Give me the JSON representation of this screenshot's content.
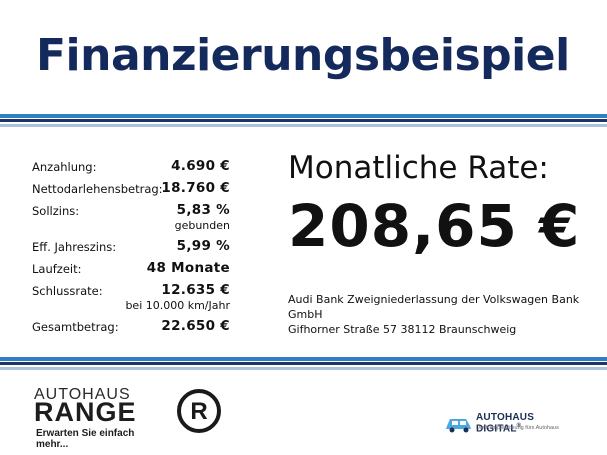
{
  "title": "Finanzierungsbeispiel",
  "details": [
    {
      "label": "Anzahlung:",
      "value": "4.690 €",
      "sub": ""
    },
    {
      "label": "Nettodarlehensbetrag:",
      "value": "18.760 €",
      "sub": ""
    },
    {
      "label": "Sollzins:",
      "value": "5,83 %",
      "sub": "gebunden"
    },
    {
      "label": "Eff. Jahreszins:",
      "value": "5,99 %",
      "sub": ""
    },
    {
      "label": "Laufzeit:",
      "value": "48 Monate",
      "sub": ""
    },
    {
      "label": "Schlussrate:",
      "value": "12.635 €",
      "sub": "bei 10.000 km/Jahr"
    },
    {
      "label": "Gesamtbetrag:",
      "value": "22.650 €",
      "sub": ""
    }
  ],
  "rate": {
    "label": "Monatliche Rate:",
    "value": "208,65 €"
  },
  "bank": {
    "line1": "Audi Bank Zweigniederlassung der Volkswagen Bank GmbH",
    "line2": "Gifhorner Straße 57 38112 Braunschweig"
  },
  "logos": {
    "range_line1": "AUTOHAUS",
    "range_line2": "RANGE",
    "range_slogan": "Erwarten Sie einfach mehr...",
    "r_letter": "R",
    "digital_name": "AUTOHAUS DIGITAL",
    "digital_reg": "®",
    "digital_tagline": "Die Komplettlösung fürs Autohaus"
  },
  "colors": {
    "title": "#142a5c",
    "stripe_blue": "#2f7fc4",
    "stripe_navy": "#1d3566",
    "stripe_light": "#aac4df"
  }
}
